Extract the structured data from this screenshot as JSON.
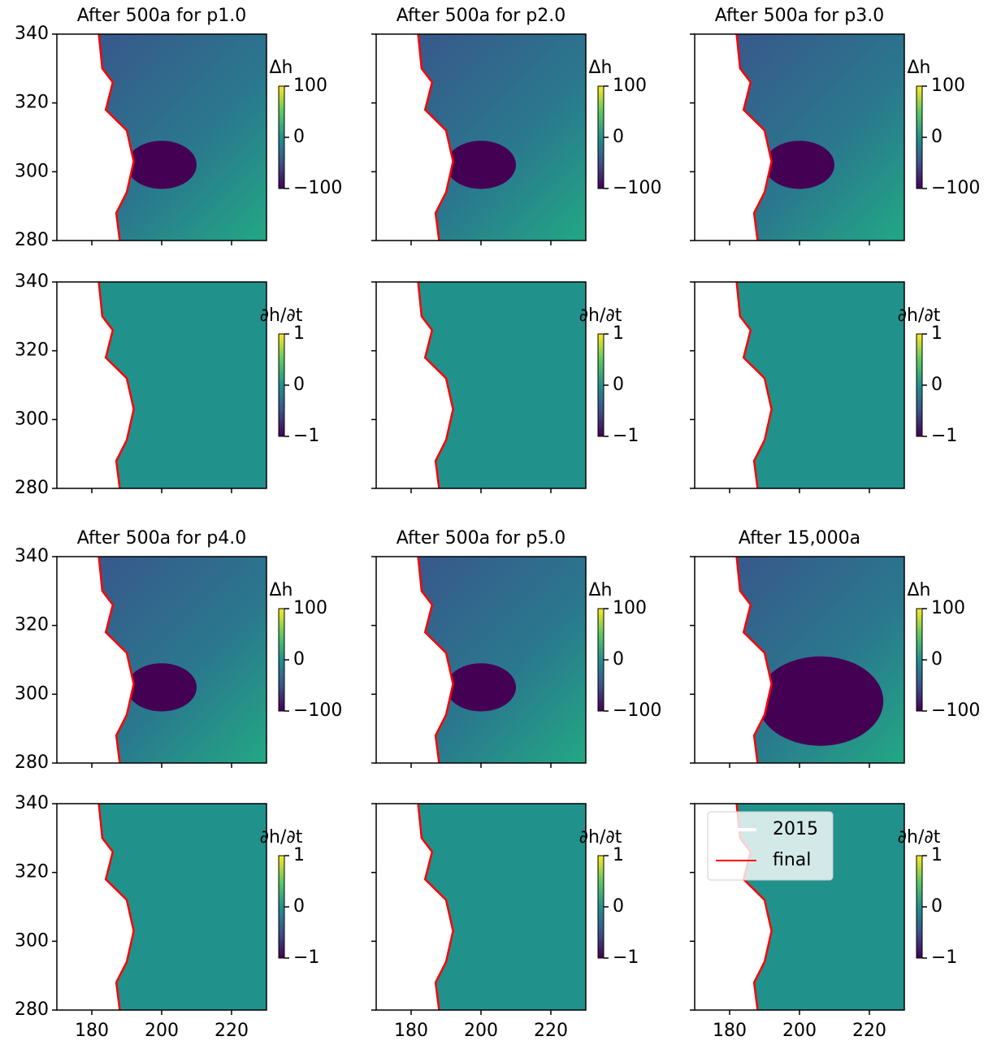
{
  "chart_data": [
    {
      "type": "heatmap",
      "title": "After 500a for p1.0",
      "colorbar_label": "Δh",
      "clim": [
        -100,
        100
      ],
      "cticks": [
        {
          "value": -100,
          "label": "−100"
        },
        0,
        100
      ],
      "xlim": [
        170,
        230
      ],
      "xticks": [
        180,
        200,
        220
      ],
      "ylim": [
        280,
        340
      ],
      "yticks": [
        280,
        300,
        320,
        340
      ]
    },
    {
      "type": "heatmap",
      "title": "After 500a for p2.0",
      "colorbar_label": "Δh",
      "clim": [
        -100,
        100
      ],
      "cticks": [
        {
          "value": -100,
          "label": "−100"
        },
        0,
        100
      ],
      "xlim": [
        170,
        230
      ],
      "xticks": [
        180,
        200,
        220
      ],
      "ylim": [
        280,
        340
      ],
      "yticks": [
        280,
        300,
        320,
        340
      ]
    },
    {
      "type": "heatmap",
      "title": "After 500a for p3.0",
      "colorbar_label": "Δh",
      "clim": [
        -100,
        100
      ],
      "cticks": [
        {
          "value": -100,
          "label": "−100"
        },
        0,
        100
      ],
      "xlim": [
        170,
        230
      ],
      "xticks": [
        180,
        200,
        220
      ],
      "ylim": [
        280,
        340
      ],
      "yticks": [
        280,
        300,
        320,
        340
      ]
    },
    {
      "type": "heatmap",
      "colorbar_label": "∂h/∂t",
      "clim": [
        -1,
        1
      ],
      "cticks": [
        {
          "value": -1,
          "label": "−1"
        },
        0,
        1
      ],
      "xlim": [
        170,
        230
      ],
      "xticks": [
        180,
        200,
        220
      ],
      "ylim": [
        280,
        340
      ],
      "yticks": [
        280,
        300,
        320,
        340
      ]
    },
    {
      "type": "heatmap",
      "colorbar_label": "∂h/∂t",
      "clim": [
        -1,
        1
      ],
      "cticks": [
        {
          "value": -1,
          "label": "−1"
        },
        0,
        1
      ],
      "xlim": [
        170,
        230
      ],
      "xticks": [
        180,
        200,
        220
      ],
      "ylim": [
        280,
        340
      ],
      "yticks": [
        280,
        300,
        320,
        340
      ]
    },
    {
      "type": "heatmap",
      "colorbar_label": "∂h/∂t",
      "clim": [
        -1,
        1
      ],
      "cticks": [
        {
          "value": -1,
          "label": "−1"
        },
        0,
        1
      ],
      "xlim": [
        170,
        230
      ],
      "xticks": [
        180,
        200,
        220
      ],
      "ylim": [
        280,
        340
      ],
      "yticks": [
        280,
        300,
        320,
        340
      ]
    },
    {
      "type": "heatmap",
      "title": "After 500a for p4.0",
      "colorbar_label": "Δh",
      "clim": [
        -100,
        100
      ],
      "cticks": [
        {
          "value": -100,
          "label": "−100"
        },
        0,
        100
      ],
      "xlim": [
        170,
        230
      ],
      "xticks": [
        180,
        200,
        220
      ],
      "ylim": [
        280,
        340
      ],
      "yticks": [
        280,
        300,
        320,
        340
      ]
    },
    {
      "type": "heatmap",
      "title": "After 500a for p5.0",
      "colorbar_label": "Δh",
      "clim": [
        -100,
        100
      ],
      "cticks": [
        {
          "value": -100,
          "label": "−100"
        },
        0,
        100
      ],
      "xlim": [
        170,
        230
      ],
      "xticks": [
        180,
        200,
        220
      ],
      "ylim": [
        280,
        340
      ],
      "yticks": [
        280,
        300,
        320,
        340
      ]
    },
    {
      "type": "heatmap",
      "title": "After 15,000a",
      "colorbar_label": "Δh",
      "clim": [
        -100,
        100
      ],
      "cticks": [
        {
          "value": -100,
          "label": "−100"
        },
        0,
        100
      ],
      "xlim": [
        170,
        230
      ],
      "xticks": [
        180,
        200,
        220
      ],
      "ylim": [
        280,
        340
      ],
      "yticks": [
        280,
        300,
        320,
        340
      ]
    },
    {
      "type": "heatmap",
      "colorbar_label": "∂h/∂t",
      "clim": [
        -1,
        1
      ],
      "cticks": [
        {
          "value": -1,
          "label": "−1"
        },
        0,
        1
      ],
      "xlim": [
        170,
        230
      ],
      "xticks": [
        180,
        200,
        220
      ],
      "ylim": [
        280,
        340
      ],
      "yticks": [
        280,
        300,
        320,
        340
      ]
    },
    {
      "type": "heatmap",
      "colorbar_label": "∂h/∂t",
      "clim": [
        -1,
        1
      ],
      "cticks": [
        {
          "value": -1,
          "label": "−1"
        },
        0,
        1
      ],
      "xlim": [
        170,
        230
      ],
      "xticks": [
        180,
        200,
        220
      ],
      "ylim": [
        280,
        340
      ],
      "yticks": [
        280,
        300,
        320,
        340
      ]
    },
    {
      "type": "heatmap",
      "colorbar_label": "∂h/∂t",
      "clim": [
        -1,
        1
      ],
      "cticks": [
        {
          "value": -1,
          "label": "−1"
        },
        0,
        1
      ],
      "xlim": [
        170,
        230
      ],
      "xticks": [
        180,
        200,
        220
      ],
      "ylim": [
        280,
        340
      ],
      "yticks": [
        280,
        300,
        320,
        340
      ],
      "legend": [
        {
          "name": "2015",
          "color": "#ffffff"
        },
        {
          "name": "final",
          "color": "#ff0000"
        }
      ]
    }
  ]
}
